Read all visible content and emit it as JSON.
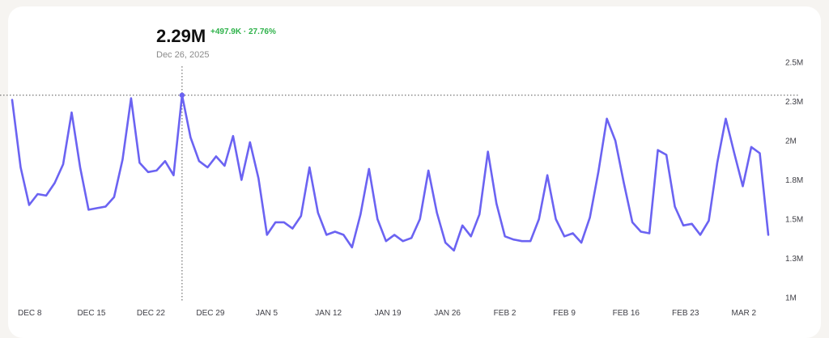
{
  "tooltip": {
    "value": "2.29M",
    "change": "+497.9K · 27.76%",
    "date": "Dec 26, 2025"
  },
  "colors": {
    "line": "#6b63f2",
    "change_positive": "#2eb24a",
    "reference_line": "#555555"
  },
  "chart_data": {
    "type": "line",
    "title": "",
    "xlabel": "",
    "ylabel": "",
    "ylim": [
      1000000,
      2500000
    ],
    "y_ticks": [
      {
        "value": 1000000,
        "label": "1M"
      },
      {
        "value": 1250000,
        "label": "1.3M"
      },
      {
        "value": 1500000,
        "label": "1.5M"
      },
      {
        "value": 1750000,
        "label": "1.8M"
      },
      {
        "value": 2000000,
        "label": "2M"
      },
      {
        "value": 2250000,
        "label": "2.3M"
      },
      {
        "value": 2500000,
        "label": "2.5M"
      }
    ],
    "x_ticks": [
      {
        "date": "2025-12-08",
        "label": "DEC 8"
      },
      {
        "date": "2025-12-15",
        "label": "DEC 15"
      },
      {
        "date": "2025-12-22",
        "label": "DEC 22"
      },
      {
        "date": "2025-12-29",
        "label": "DEC 29"
      },
      {
        "date": "2026-01-05",
        "label": "JAN 5"
      },
      {
        "date": "2026-01-12",
        "label": "JAN 12"
      },
      {
        "date": "2026-01-19",
        "label": "JAN 19"
      },
      {
        "date": "2026-01-26",
        "label": "JAN 26"
      },
      {
        "date": "2026-02-02",
        "label": "FEB 2"
      },
      {
        "date": "2026-02-09",
        "label": "FEB 9"
      },
      {
        "date": "2026-02-16",
        "label": "FEB 16"
      },
      {
        "date": "2026-02-23",
        "label": "FEB 23"
      },
      {
        "date": "2026-03-02",
        "label": "MAR 2"
      }
    ],
    "highlight": {
      "date": "2025-12-26",
      "value": 2290000
    },
    "grid": false,
    "series": [
      {
        "x": [
          "2025-12-06",
          "2025-12-07",
          "2025-12-08",
          "2025-12-09",
          "2025-12-10",
          "2025-12-11",
          "2025-12-12",
          "2025-12-13",
          "2025-12-14",
          "2025-12-15",
          "2025-12-16",
          "2025-12-17",
          "2025-12-18",
          "2025-12-19",
          "2025-12-20",
          "2025-12-21",
          "2025-12-22",
          "2025-12-23",
          "2025-12-24",
          "2025-12-25",
          "2025-12-26",
          "2025-12-27",
          "2025-12-28",
          "2025-12-29",
          "2025-12-30",
          "2025-12-31",
          "2026-01-01",
          "2026-01-02",
          "2026-01-03",
          "2026-01-04",
          "2026-01-05",
          "2026-01-06",
          "2026-01-07",
          "2026-01-08",
          "2026-01-09",
          "2026-01-10",
          "2026-01-11",
          "2026-01-12",
          "2026-01-13",
          "2026-01-14",
          "2026-01-15",
          "2026-01-16",
          "2026-01-17",
          "2026-01-18",
          "2026-01-19",
          "2026-01-20",
          "2026-01-21",
          "2026-01-22",
          "2026-01-23",
          "2026-01-24",
          "2026-01-25",
          "2026-01-26",
          "2026-01-27",
          "2026-01-28",
          "2026-01-29",
          "2026-01-30",
          "2026-01-31",
          "2026-02-01",
          "2026-02-02",
          "2026-02-03",
          "2026-02-04",
          "2026-02-05",
          "2026-02-06",
          "2026-02-07",
          "2026-02-08",
          "2026-02-09",
          "2026-02-10",
          "2026-02-11",
          "2026-02-12",
          "2026-02-13",
          "2026-02-14",
          "2026-02-15",
          "2026-02-16",
          "2026-02-17",
          "2026-02-18",
          "2026-02-19",
          "2026-02-20",
          "2026-02-21",
          "2026-02-22",
          "2026-02-23",
          "2026-02-24",
          "2026-02-25",
          "2026-02-26",
          "2026-02-27",
          "2026-02-28",
          "2026-03-01",
          "2026-03-02",
          "2026-03-03",
          "2026-03-04",
          "2026-03-05"
        ],
        "values": [
          2260000,
          1830000,
          1590000,
          1660000,
          1650000,
          1730000,
          1850000,
          2180000,
          1830000,
          1560000,
          1570000,
          1580000,
          1640000,
          1880000,
          2270000,
          1860000,
          1800000,
          1810000,
          1870000,
          1780000,
          2290000,
          2020000,
          1870000,
          1830000,
          1900000,
          1840000,
          2030000,
          1750000,
          1990000,
          1760000,
          1400000,
          1480000,
          1480000,
          1440000,
          1520000,
          1830000,
          1540000,
          1400000,
          1420000,
          1400000,
          1320000,
          1530000,
          1820000,
          1500000,
          1360000,
          1400000,
          1360000,
          1380000,
          1500000,
          1810000,
          1540000,
          1350000,
          1300000,
          1460000,
          1390000,
          1530000,
          1930000,
          1600000,
          1390000,
          1370000,
          1360000,
          1360000,
          1500000,
          1780000,
          1500000,
          1390000,
          1410000,
          1350000,
          1510000,
          1800000,
          2140000,
          2000000,
          1730000,
          1480000,
          1420000,
          1410000,
          1940000,
          1910000,
          1580000,
          1460000,
          1470000,
          1400000,
          1490000,
          1860000,
          2140000,
          1920000,
          1710000,
          1960000,
          1920000,
          1400000
        ]
      }
    ]
  }
}
